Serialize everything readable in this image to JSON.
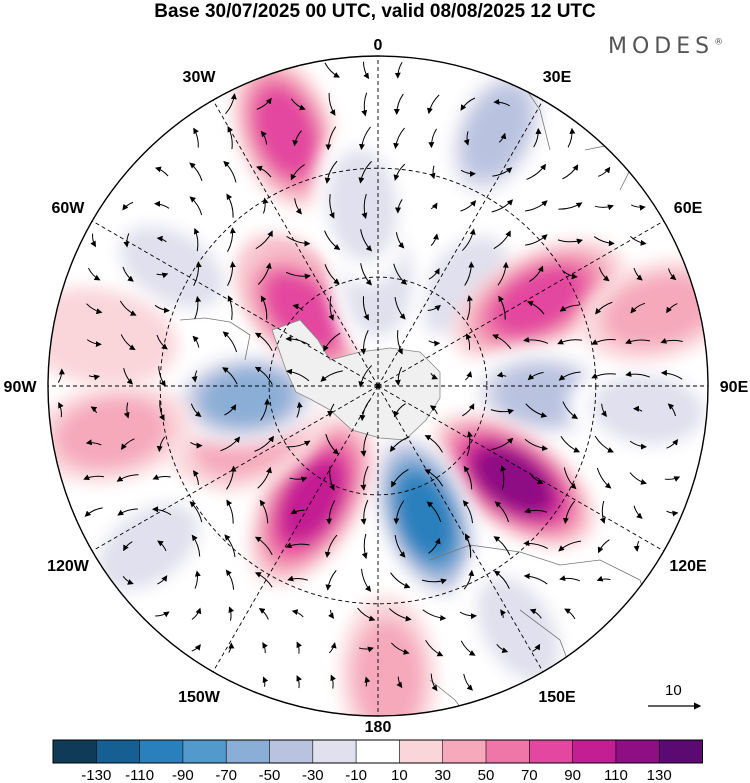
{
  "title": "Base 30/07/2025 00 UTC, valid 08/08/2025 12 UTC",
  "logo": "MODES",
  "logo_mark": "®",
  "map": {
    "projection": "polar-stereographic",
    "hemisphere": "south",
    "longitude_labels": [
      {
        "name": "lon-0",
        "text": "0"
      },
      {
        "name": "lon-30e",
        "text": "30E"
      },
      {
        "name": "lon-60e",
        "text": "60E"
      },
      {
        "name": "lon-90e",
        "text": "90E"
      },
      {
        "name": "lon-120e",
        "text": "120E"
      },
      {
        "name": "lon-150e",
        "text": "150E"
      },
      {
        "name": "lon-180",
        "text": "180"
      },
      {
        "name": "lon-150w",
        "text": "150W"
      },
      {
        "name": "lon-120w",
        "text": "120W"
      },
      {
        "name": "lon-90w",
        "text": "90W"
      },
      {
        "name": "lon-60w",
        "text": "60W"
      },
      {
        "name": "lon-30w",
        "text": "30W"
      }
    ],
    "vector_reference": "10"
  },
  "colorbar": {
    "colors": [
      "#0f3a58",
      "#155f93",
      "#2a80bd",
      "#5299cc",
      "#8aaed6",
      "#b9c3e0",
      "#e0e0ee",
      "#ffffff",
      "#fad6da",
      "#f5a9bb",
      "#ee77a8",
      "#e3479f",
      "#c41e93",
      "#8e0f84",
      "#5b0a72"
    ],
    "labels": [
      "-130",
      "-110",
      "-90",
      "-70",
      "-50",
      "-30",
      "-10",
      "10",
      "30",
      "50",
      "70",
      "90",
      "110",
      "130"
    ]
  },
  "anomaly_cells": [
    {
      "lon": -20,
      "r": 0.82,
      "value": 72
    },
    {
      "lon": 25,
      "r": 0.85,
      "value": -60
    },
    {
      "lon": -60,
      "r": 0.72,
      "value": -40
    },
    {
      "lon": -42,
      "r": 0.35,
      "value": 80
    },
    {
      "lon": 40,
      "r": 0.4,
      "value": -30
    },
    {
      "lon": 62,
      "r": 0.55,
      "value": 85
    },
    {
      "lon": 93,
      "r": 0.5,
      "value": -60
    },
    {
      "lon": 95,
      "r": 0.82,
      "value": -40
    },
    {
      "lon": 125,
      "r": 0.5,
      "value": 120
    },
    {
      "lon": 160,
      "r": 0.42,
      "value": -125
    },
    {
      "lon": -150,
      "r": 0.4,
      "value": 90
    },
    {
      "lon": -112,
      "r": 0.42,
      "value": 35
    },
    {
      "lon": -95,
      "r": 0.4,
      "value": -70
    },
    {
      "lon": -45,
      "r": 0.32,
      "value": 75
    },
    {
      "lon": -125,
      "r": 0.85,
      "value": -40
    },
    {
      "lon": -100,
      "r": 0.82,
      "value": 35
    },
    {
      "lon": -80,
      "r": 0.86,
      "value": 25
    },
    {
      "lon": 150,
      "r": 0.85,
      "value": -30
    },
    {
      "lon": 178,
      "r": 0.88,
      "value": 35
    },
    {
      "lon": 75,
      "r": 0.88,
      "value": 30
    },
    {
      "lon": 0,
      "r": 0.32,
      "value": -35
    },
    {
      "lon": -5,
      "r": 0.55,
      "value": -30
    }
  ]
}
